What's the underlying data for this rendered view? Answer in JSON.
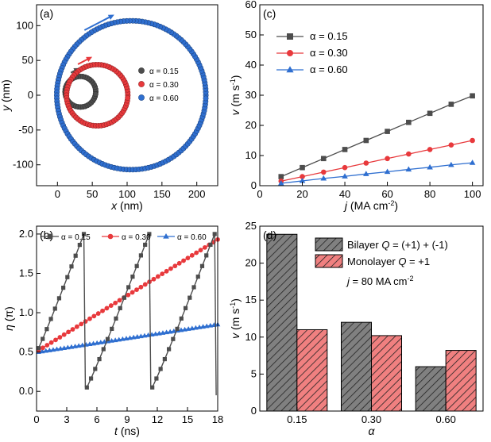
{
  "colors": {
    "black": "#4d4d4d",
    "red": "#e8393c",
    "blue": "#2f6fd0",
    "bar_gray": "#808080",
    "bar_red": "#f08080"
  },
  "chart_data": [
    {
      "panel": "(a)",
      "type": "scatter",
      "xlabel_var": "x",
      "xlabel_unit": " (nm)",
      "ylabel_var": "y",
      "ylabel_unit": " (nm)",
      "xlim": [
        -30,
        230
      ],
      "ylim": [
        -130,
        130
      ],
      "xticks": [
        0,
        50,
        100,
        150,
        200
      ],
      "yticks": [
        -100,
        -50,
        0,
        50,
        100
      ],
      "legend_position": "center-right",
      "series": [
        {
          "name": "α = 0.15",
          "color": "#4d4d4d",
          "shape": "circle-orbit",
          "center": [
            33,
            5
          ],
          "radius": 22,
          "points": 40
        },
        {
          "name": "α = 0.30",
          "color": "#e8393c",
          "shape": "circle-orbit",
          "center": [
            57,
            0
          ],
          "radius": 44,
          "points": 70
        },
        {
          "name": "α = 0.60",
          "color": "#2f6fd0",
          "shape": "circle-orbit",
          "center": [
            106,
            0
          ],
          "radius": 107,
          "points": 150
        }
      ]
    },
    {
      "panel": "(c)",
      "type": "line",
      "xlabel_var": "j",
      "xlabel_unit": " (MA cm",
      "xlabel_sup": "-2",
      "xlabel_close": ")",
      "ylabel_var": "v",
      "ylabel_unit": " (m s",
      "ylabel_sup": "-1",
      "ylabel_close": ")",
      "xlim": [
        0,
        105
      ],
      "ylim": [
        0,
        60
      ],
      "xticks": [
        0,
        20,
        40,
        60,
        80,
        100
      ],
      "yticks": [
        0,
        10,
        20,
        30,
        40,
        50,
        60
      ],
      "legend_position": "top-left",
      "x": [
        10,
        20,
        30,
        40,
        50,
        60,
        70,
        80,
        90,
        100
      ],
      "series": [
        {
          "name": "α = 0.15",
          "color": "#4d4d4d",
          "marker": "square",
          "values": [
            3,
            6,
            9,
            12,
            15,
            18,
            21,
            24,
            27,
            29.8
          ]
        },
        {
          "name": "α = 0.30",
          "color": "#e8393c",
          "marker": "circle",
          "values": [
            1.5,
            3,
            4.5,
            6,
            7.5,
            9,
            10.5,
            12,
            13.5,
            15
          ]
        },
        {
          "name": "α = 0.60",
          "color": "#2f6fd0",
          "marker": "triangle",
          "values": [
            0.8,
            1.6,
            2.4,
            3.1,
            3.9,
            4.6,
            5.4,
            6.1,
            6.9,
            7.6
          ]
        }
      ]
    },
    {
      "panel": "(b)",
      "type": "line",
      "xlabel_var": "t",
      "xlabel_unit": " (ns)",
      "ylabel_var": "η",
      "ylabel_unit": " (π)",
      "xlim": [
        0,
        18
      ],
      "ylim": [
        -0.25,
        2.1
      ],
      "xticks": [
        0,
        3,
        6,
        9,
        12,
        15,
        18
      ],
      "yticks": [
        0.0,
        0.5,
        1.0,
        1.5,
        2.0
      ],
      "legend_position": "top",
      "series": [
        {
          "name": "α = 0.15",
          "color": "#4d4d4d",
          "marker": "square",
          "segments": [
            [
              [
                0.2,
                0.55
              ],
              [
                4.7,
                2.0
              ]
            ],
            [
              [
                5.0,
                0.05
              ],
              [
                11.2,
                2.0
              ]
            ],
            [
              [
                11.5,
                0.05
              ],
              [
                17.7,
                2.0
              ]
            ]
          ],
          "wrap_times": [
            4.85,
            11.35,
            17.85
          ]
        },
        {
          "name": "α = 0.30",
          "color": "#e8393c",
          "marker": "circle",
          "segments": [
            [
              [
                0.2,
                0.52
              ],
              [
                18.0,
                1.93
              ]
            ]
          ]
        },
        {
          "name": "α = 0.60",
          "color": "#2f6fd0",
          "marker": "triangle",
          "segments": [
            [
              [
                0.2,
                0.5
              ],
              [
                18.0,
                0.85
              ]
            ]
          ]
        }
      ]
    },
    {
      "panel": "(d)",
      "type": "bar",
      "xlabel_var": "α",
      "ylabel_var": "v",
      "ylabel_unit": " (m s",
      "ylabel_sup": "-1",
      "ylabel_close": ")",
      "ylim": [
        0,
        25
      ],
      "yticks": [
        0,
        5,
        10,
        15,
        20,
        25
      ],
      "categories": [
        "0.15",
        "0.30",
        "0.60"
      ],
      "legend_position": "top-right",
      "annotation_pre": "j",
      "annotation_mid": " = 80 MA cm",
      "annotation_sup": "-2",
      "series": [
        {
          "name_pre": "Bilayer ",
          "name_q": "Q",
          "name_post": " = (+1) + (-1)",
          "color": "#808080",
          "values": [
            23.9,
            12.0,
            6.0
          ]
        },
        {
          "name_pre": "Monolayer ",
          "name_q": "Q",
          "name_post": " = +1",
          "color": "#f08080",
          "values": [
            11.0,
            10.2,
            8.2
          ]
        }
      ]
    }
  ]
}
